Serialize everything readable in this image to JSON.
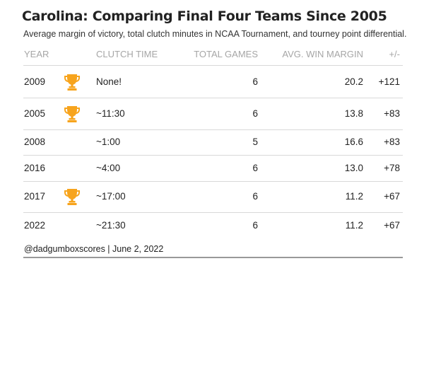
{
  "title": "Carolina: Comparing Final Four Teams Since 2005",
  "subtitle": "Average margin of victory, total clutch minutes in NCAA Tournament, and tourney point differential.",
  "colors": {
    "trophy": "#f7a41d",
    "header_text": "#a6a6a6",
    "row_divider": "#d9d9d9",
    "bottom_rule": "#999999"
  },
  "icon": "trophy-icon",
  "chart_data": {
    "type": "table",
    "title": "Carolina: Comparing Final Four Teams Since 2005",
    "subtitle": "Average margin of victory, total clutch minutes in NCAA Tournament, and tourney point differential.",
    "columns": [
      "YEAR",
      "",
      "CLUTCH TIME",
      "TOTAL GAMES",
      "AVG. WIN MARGIN",
      "+/-"
    ],
    "rows": [
      {
        "year": "2009",
        "champion": true,
        "clutch_time": "None!",
        "total_games": "6",
        "avg_win_margin": "20.2",
        "diff": "+121"
      },
      {
        "year": "2005",
        "champion": true,
        "clutch_time": "~11:30",
        "total_games": "6",
        "avg_win_margin": "13.8",
        "diff": "+83"
      },
      {
        "year": "2008",
        "champion": false,
        "clutch_time": "~1:00",
        "total_games": "5",
        "avg_win_margin": "16.6",
        "diff": "+83"
      },
      {
        "year": "2016",
        "champion": false,
        "clutch_time": "~4:00",
        "total_games": "6",
        "avg_win_margin": "13.0",
        "diff": "+78"
      },
      {
        "year": "2017",
        "champion": true,
        "clutch_time": "~17:00",
        "total_games": "6",
        "avg_win_margin": "11.2",
        "diff": "+67"
      },
      {
        "year": "2022",
        "champion": false,
        "clutch_time": "~21:30",
        "total_games": "6",
        "avg_win_margin": "11.2",
        "diff": "+67"
      }
    ]
  },
  "footer": "@dadgumboxscores | June 2, 2022"
}
